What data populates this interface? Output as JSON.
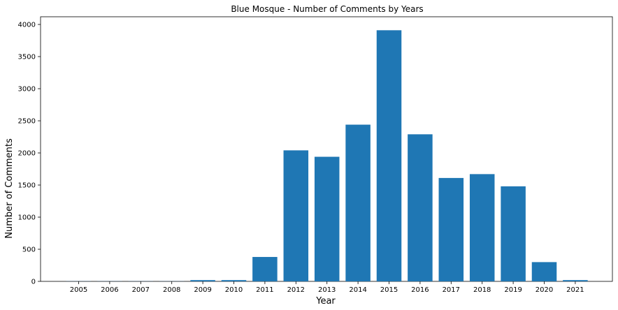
{
  "chart_data": {
    "type": "bar",
    "title": "Blue Mosque - Number of Comments by Years",
    "xlabel": "Year",
    "ylabel": "Number of Comments",
    "categories": [
      "2005",
      "2006",
      "2007",
      "2008",
      "2009",
      "2010",
      "2011",
      "2012",
      "2013",
      "2014",
      "2015",
      "2016",
      "2017",
      "2018",
      "2019",
      "2020",
      "2021"
    ],
    "values": [
      2,
      2,
      2,
      2,
      20,
      20,
      380,
      2040,
      1940,
      2440,
      3910,
      2290,
      1610,
      1670,
      1480,
      300,
      20
    ],
    "ylim": [
      0,
      4120
    ],
    "yticks": [
      0,
      500,
      1000,
      1500,
      2000,
      2500,
      3000,
      3500,
      4000
    ],
    "bar_color": "#1f77b4",
    "grid": false,
    "legend": "none"
  }
}
